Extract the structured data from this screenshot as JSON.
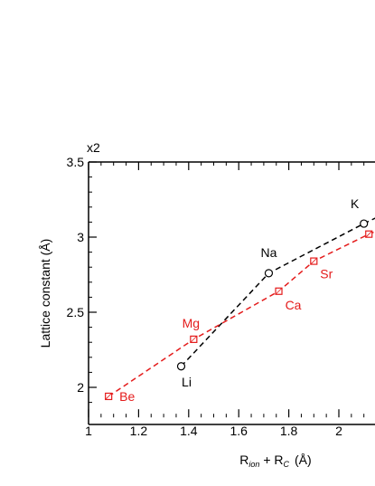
{
  "chart_data": {
    "type": "line",
    "title": "",
    "y_multiplier": "x2",
    "xlabel": {
      "main": "R",
      "sub1": "ion",
      "plus": " + R",
      "sub2": "C",
      "unit": "(Å)"
    },
    "ylabel": "Lattice constant (Å)",
    "xlim": [
      1.0,
      2.15
    ],
    "ylim": [
      1.8,
      3.5
    ],
    "x_ticks": [
      "1",
      "1.2",
      "1.4",
      "1.6",
      "1.8",
      "2"
    ],
    "y_ticks": [
      "2",
      "2.5",
      "3",
      "3.5"
    ],
    "legend": "none",
    "series": [
      {
        "marker": "circle",
        "color": "#000000",
        "points": [
          {
            "label": "Li",
            "x": 1.37,
            "y": 2.14
          },
          {
            "label": "Na",
            "x": 1.72,
            "y": 2.76
          },
          {
            "label": "K",
            "x": 2.1,
            "y": 3.09
          }
        ],
        "extends_to": {
          "x": 2.15,
          "y": 3.13
        }
      },
      {
        "marker": "square",
        "color": "#e41b1b",
        "points": [
          {
            "label": "Be",
            "x": 1.08,
            "y": 1.94
          },
          {
            "label": "Mg",
            "x": 1.42,
            "y": 2.32
          },
          {
            "label": "Ca",
            "x": 1.76,
            "y": 2.64
          },
          {
            "label": "Sr",
            "x": 1.9,
            "y": 2.84
          },
          {
            "label": "",
            "x": 2.12,
            "y": 3.02
          }
        ],
        "extends_to": {
          "x": 2.15,
          "y": 3.04
        }
      }
    ]
  }
}
